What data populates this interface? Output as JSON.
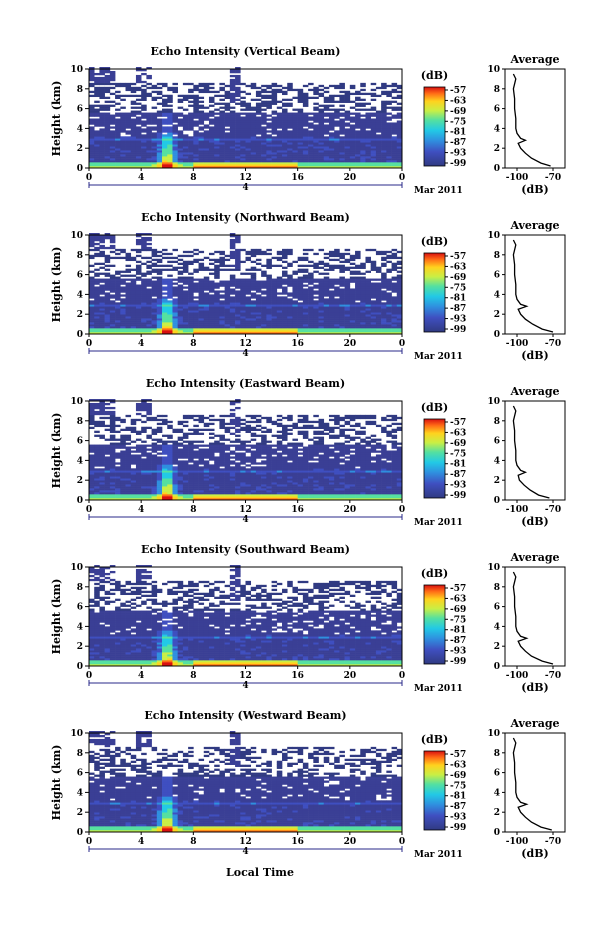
{
  "chart_data": [
    {
      "type": "heatmap",
      "title": "Echo Intensity (Vertical Beam)",
      "ylabel": "Height (km)",
      "x_ticks": [
        "0",
        "4",
        "8",
        "12",
        "16",
        "20",
        "0"
      ],
      "y_ticks": [
        "0",
        "2",
        "4",
        "6",
        "8",
        "10"
      ],
      "xlim": [
        0,
        24
      ],
      "ylim": [
        0,
        10
      ],
      "date_day": "4",
      "date_month": "Mar 2011",
      "colorbar": {
        "unit": "(dB)",
        "ticks": [
          "-57",
          "-63",
          "-69",
          "-75",
          "-81",
          "-87",
          "-93",
          "-99"
        ]
      },
      "profile": {
        "title": "Average",
        "xlabel": "(dB)",
        "x_ticks": [
          "-100",
          "-70"
        ],
        "y_ticks": [
          "0",
          "2",
          "4",
          "6",
          "8",
          "10"
        ],
        "heights": [
          0.2,
          0.5,
          1.0,
          1.5,
          2.0,
          2.5,
          2.8,
          3.0,
          3.5,
          4.0,
          5.0,
          6.0,
          7.0,
          8.0,
          9.0,
          9.5
        ],
        "values": [
          -72,
          -80,
          -88,
          -93,
          -97,
          -99,
          -93,
          -97,
          -100,
          -101,
          -101,
          -102,
          -102,
          -103,
          -101,
          -103
        ]
      }
    },
    {
      "type": "heatmap",
      "title": "Echo Intensity (Northward Beam)",
      "ylabel": "Height (km)",
      "x_ticks": [
        "0",
        "4",
        "8",
        "12",
        "16",
        "20",
        "0"
      ],
      "y_ticks": [
        "0",
        "2",
        "4",
        "6",
        "8",
        "10"
      ],
      "xlim": [
        0,
        24
      ],
      "ylim": [
        0,
        10
      ],
      "date_day": "4",
      "date_month": "Mar 2011",
      "colorbar": {
        "unit": "(dB)",
        "ticks": [
          "-57",
          "-63",
          "-69",
          "-75",
          "-81",
          "-87",
          "-93",
          "-99"
        ]
      },
      "profile": {
        "title": "Average",
        "xlabel": "(dB)",
        "x_ticks": [
          "-100",
          "-70"
        ],
        "y_ticks": [
          "0",
          "2",
          "4",
          "6",
          "8",
          "10"
        ],
        "heights": [
          0.2,
          0.5,
          1.0,
          1.5,
          2.0,
          2.5,
          2.8,
          3.0,
          3.5,
          4.0,
          5.0,
          6.0,
          7.0,
          8.0,
          9.0,
          9.5
        ],
        "values": [
          -70,
          -79,
          -87,
          -93,
          -97,
          -99,
          -92,
          -97,
          -100,
          -101,
          -101,
          -102,
          -102,
          -103,
          -101,
          -103
        ]
      }
    },
    {
      "type": "heatmap",
      "title": "Echo Intensity (Eastward Beam)",
      "ylabel": "Height (km)",
      "x_ticks": [
        "0",
        "4",
        "8",
        "12",
        "16",
        "20",
        "0"
      ],
      "y_ticks": [
        "0",
        "2",
        "4",
        "6",
        "8",
        "10"
      ],
      "xlim": [
        0,
        24
      ],
      "ylim": [
        0,
        10
      ],
      "date_day": "4",
      "date_month": "Mar 2011",
      "colorbar": {
        "unit": "(dB)",
        "ticks": [
          "-57",
          "-63",
          "-69",
          "-75",
          "-81",
          "-87",
          "-93",
          "-99"
        ]
      },
      "profile": {
        "title": "Average",
        "xlabel": "(dB)",
        "x_ticks": [
          "-100",
          "-70"
        ],
        "y_ticks": [
          "0",
          "2",
          "4",
          "6",
          "8",
          "10"
        ],
        "heights": [
          0.2,
          0.5,
          1.0,
          1.5,
          2.0,
          2.5,
          2.8,
          3.0,
          3.5,
          4.0,
          5.0,
          6.0,
          7.0,
          8.0,
          9.0,
          9.5
        ],
        "values": [
          -73,
          -82,
          -89,
          -94,
          -98,
          -99,
          -93,
          -97,
          -100,
          -101,
          -101,
          -102,
          -102,
          -103,
          -101,
          -103
        ]
      }
    },
    {
      "type": "heatmap",
      "title": "Echo Intensity (Southward Beam)",
      "ylabel": "Height (km)",
      "x_ticks": [
        "0",
        "4",
        "8",
        "12",
        "16",
        "20",
        "0"
      ],
      "y_ticks": [
        "0",
        "2",
        "4",
        "6",
        "8",
        "10"
      ],
      "xlim": [
        0,
        24
      ],
      "ylim": [
        0,
        10
      ],
      "date_day": "4",
      "date_month": "Mar 2011",
      "colorbar": {
        "unit": "(dB)",
        "ticks": [
          "-57",
          "-63",
          "-69",
          "-75",
          "-81",
          "-87",
          "-93",
          "-99"
        ]
      },
      "profile": {
        "title": "Average",
        "xlabel": "(dB)",
        "x_ticks": [
          "-100",
          "-70"
        ],
        "y_ticks": [
          "0",
          "2",
          "4",
          "6",
          "8",
          "10"
        ],
        "heights": [
          0.2,
          0.5,
          1.0,
          1.5,
          2.0,
          2.5,
          2.8,
          3.0,
          3.5,
          4.0,
          5.0,
          6.0,
          7.0,
          8.0,
          9.0,
          9.5
        ],
        "values": [
          -70,
          -79,
          -88,
          -93,
          -97,
          -99,
          -92,
          -97,
          -100,
          -101,
          -101,
          -102,
          -102,
          -103,
          -101,
          -103
        ]
      }
    },
    {
      "type": "heatmap",
      "title": "Echo Intensity (Westward Beam)",
      "ylabel": "Height (km)",
      "xlabel": "Local Time",
      "x_ticks": [
        "0",
        "4",
        "8",
        "12",
        "16",
        "20",
        "0"
      ],
      "y_ticks": [
        "0",
        "2",
        "4",
        "6",
        "8",
        "10"
      ],
      "xlim": [
        0,
        24
      ],
      "ylim": [
        0,
        10
      ],
      "date_day": "4",
      "date_month": "Mar 2011",
      "colorbar": {
        "unit": "(dB)",
        "ticks": [
          "-57",
          "-63",
          "-69",
          "-75",
          "-81",
          "-87",
          "-93",
          "-99"
        ]
      },
      "profile": {
        "title": "Average",
        "xlabel": "(dB)",
        "x_ticks": [
          "-100",
          "-70"
        ],
        "y_ticks": [
          "0",
          "2",
          "4",
          "6",
          "8",
          "10"
        ],
        "heights": [
          0.2,
          0.5,
          1.0,
          1.5,
          2.0,
          2.5,
          2.8,
          3.0,
          3.5,
          4.0,
          5.0,
          6.0,
          7.0,
          8.0,
          9.0,
          9.5
        ],
        "values": [
          -71,
          -80,
          -88,
          -93,
          -97,
          -99,
          -92,
          -97,
          -100,
          -101,
          -101,
          -102,
          -102,
          -103,
          -101,
          -103
        ]
      }
    }
  ]
}
